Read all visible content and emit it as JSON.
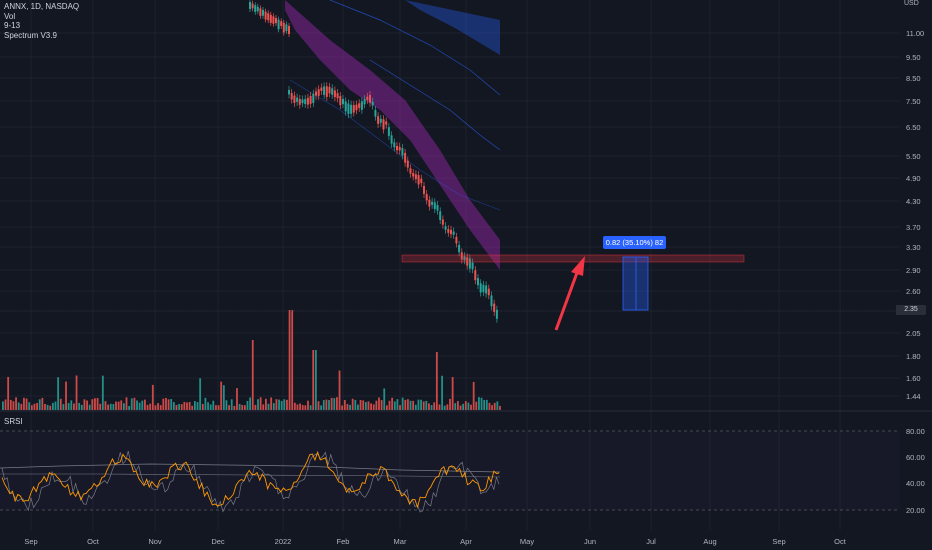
{
  "legend": {
    "symbol": "ANNX, 1D, NASDAQ",
    "vol": "Vol",
    "ema": "9-13",
    "spectrum": "Spectrum V3.9"
  },
  "currency": "USD",
  "last_price": "2.35",
  "measure_label": "0.82 (35.10%) 82",
  "srsi_label": "SRSI",
  "price_axis": [
    "11.00",
    "9.50",
    "8.50",
    "7.50",
    "6.50",
    "5.50",
    "4.90",
    "4.30",
    "3.70",
    "3.30",
    "2.90",
    "2.60",
    "2.35",
    "2.05",
    "1.80",
    "1.60",
    "1.44"
  ],
  "osc_axis": [
    "80.00",
    "60.00",
    "40.00",
    "20.00"
  ],
  "time_axis": [
    "Sep",
    "Oct",
    "Nov",
    "Dec",
    "2022",
    "Feb",
    "Mar",
    "Apr",
    "May",
    "Jun",
    "Jul",
    "Aug",
    "Sep",
    "Oct"
  ],
  "colors": {
    "bg": "#131722",
    "up": "#26a69a",
    "down": "#ef5350",
    "srsi_k": "#ff9800",
    "band": "#9c27b0",
    "blue": "#2962ff",
    "arrow": "#f23645"
  },
  "chart_data": {
    "type": "candlestick",
    "symbol": "ANNX",
    "interval": "1D",
    "exchange": "NASDAQ",
    "close_last": 2.35,
    "scale": "log",
    "support_zone": [
      3.1,
      3.3
    ],
    "measure": {
      "change": 0.82,
      "percent": 35.1,
      "bars": 82
    },
    "srsi_levels": [
      80,
      20
    ]
  }
}
